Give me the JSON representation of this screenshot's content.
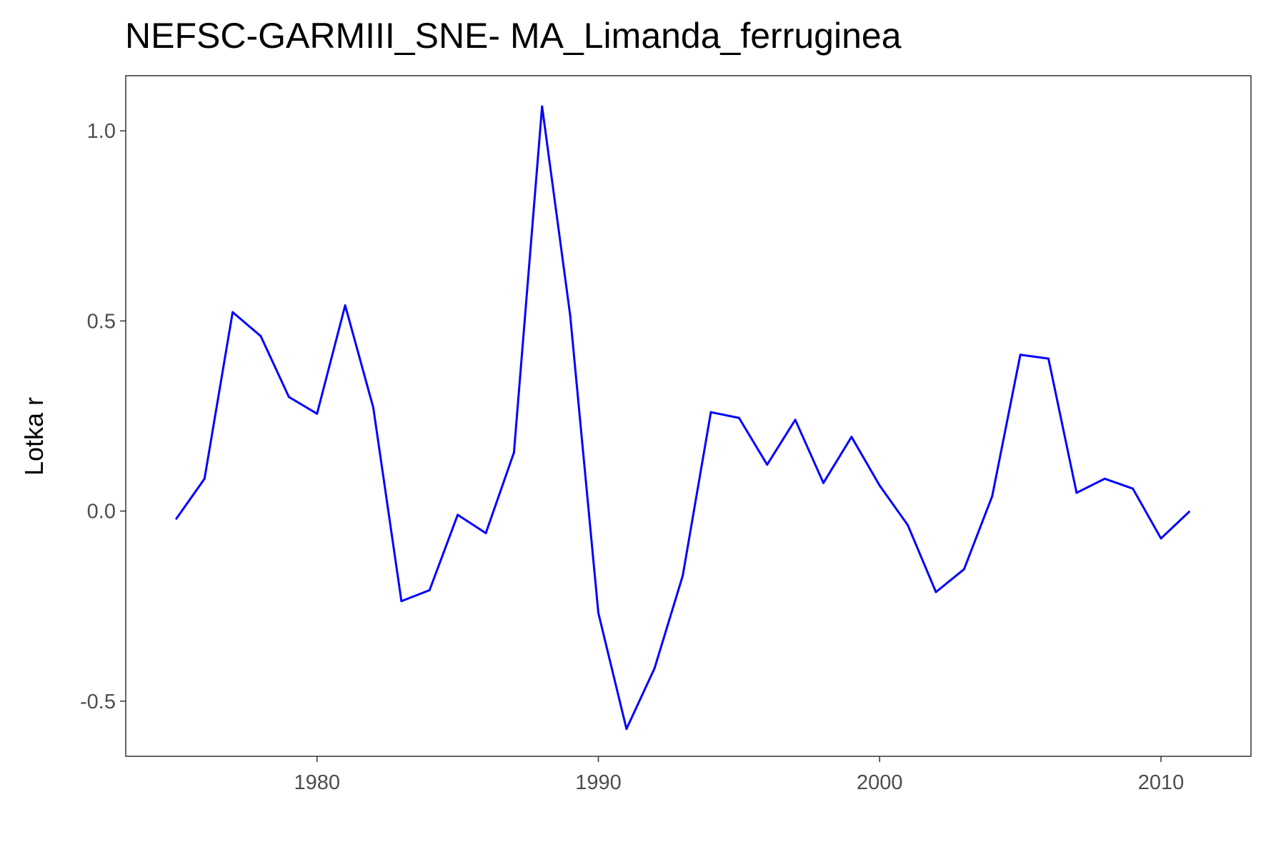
{
  "chart_data": {
    "type": "line",
    "title": "NEFSC-GARMIII_SNE- MA_Limanda_ferruginea",
    "xlabel": "",
    "ylabel": "Lotka r",
    "xlim": [
      1973.2,
      2013.2
    ],
    "ylim": [
      -0.645,
      1.145
    ],
    "x_ticks": [
      1980,
      1990,
      2000,
      2010
    ],
    "x_tick_labels": [
      "1980",
      "1990",
      "2000",
      "2010"
    ],
    "y_ticks": [
      1.0,
      0.5,
      0.0,
      -0.5
    ],
    "y_tick_labels": [
      "1.0",
      "0.5",
      "0.0",
      "-0.5"
    ],
    "grid": false,
    "line_color": "#0000ff",
    "series": [
      {
        "x": [
          1975,
          1976,
          1977,
          1978,
          1979,
          1980,
          1981,
          1982,
          1983,
          1984,
          1985,
          1986,
          1987,
          1988,
          1989,
          1990,
          1991,
          1992,
          1993,
          1994,
          1995,
          1996,
          1997,
          1998,
          1999,
          2000,
          2001,
          2002,
          2003,
          2004,
          2005,
          2006,
          2007,
          2008,
          2009,
          2010,
          2011
        ],
        "values": [
          -0.02,
          0.085,
          0.523,
          0.46,
          0.3,
          0.256,
          0.541,
          0.272,
          -0.237,
          -0.208,
          -0.01,
          -0.058,
          0.154,
          1.064,
          0.514,
          -0.268,
          -0.573,
          -0.413,
          -0.17,
          0.26,
          0.245,
          0.122,
          0.24,
          0.074,
          0.195,
          0.067,
          -0.037,
          -0.213,
          -0.153,
          0.039,
          0.411,
          0.401,
          0.048,
          0.085,
          0.059,
          -0.072,
          -0.002
        ]
      }
    ]
  }
}
